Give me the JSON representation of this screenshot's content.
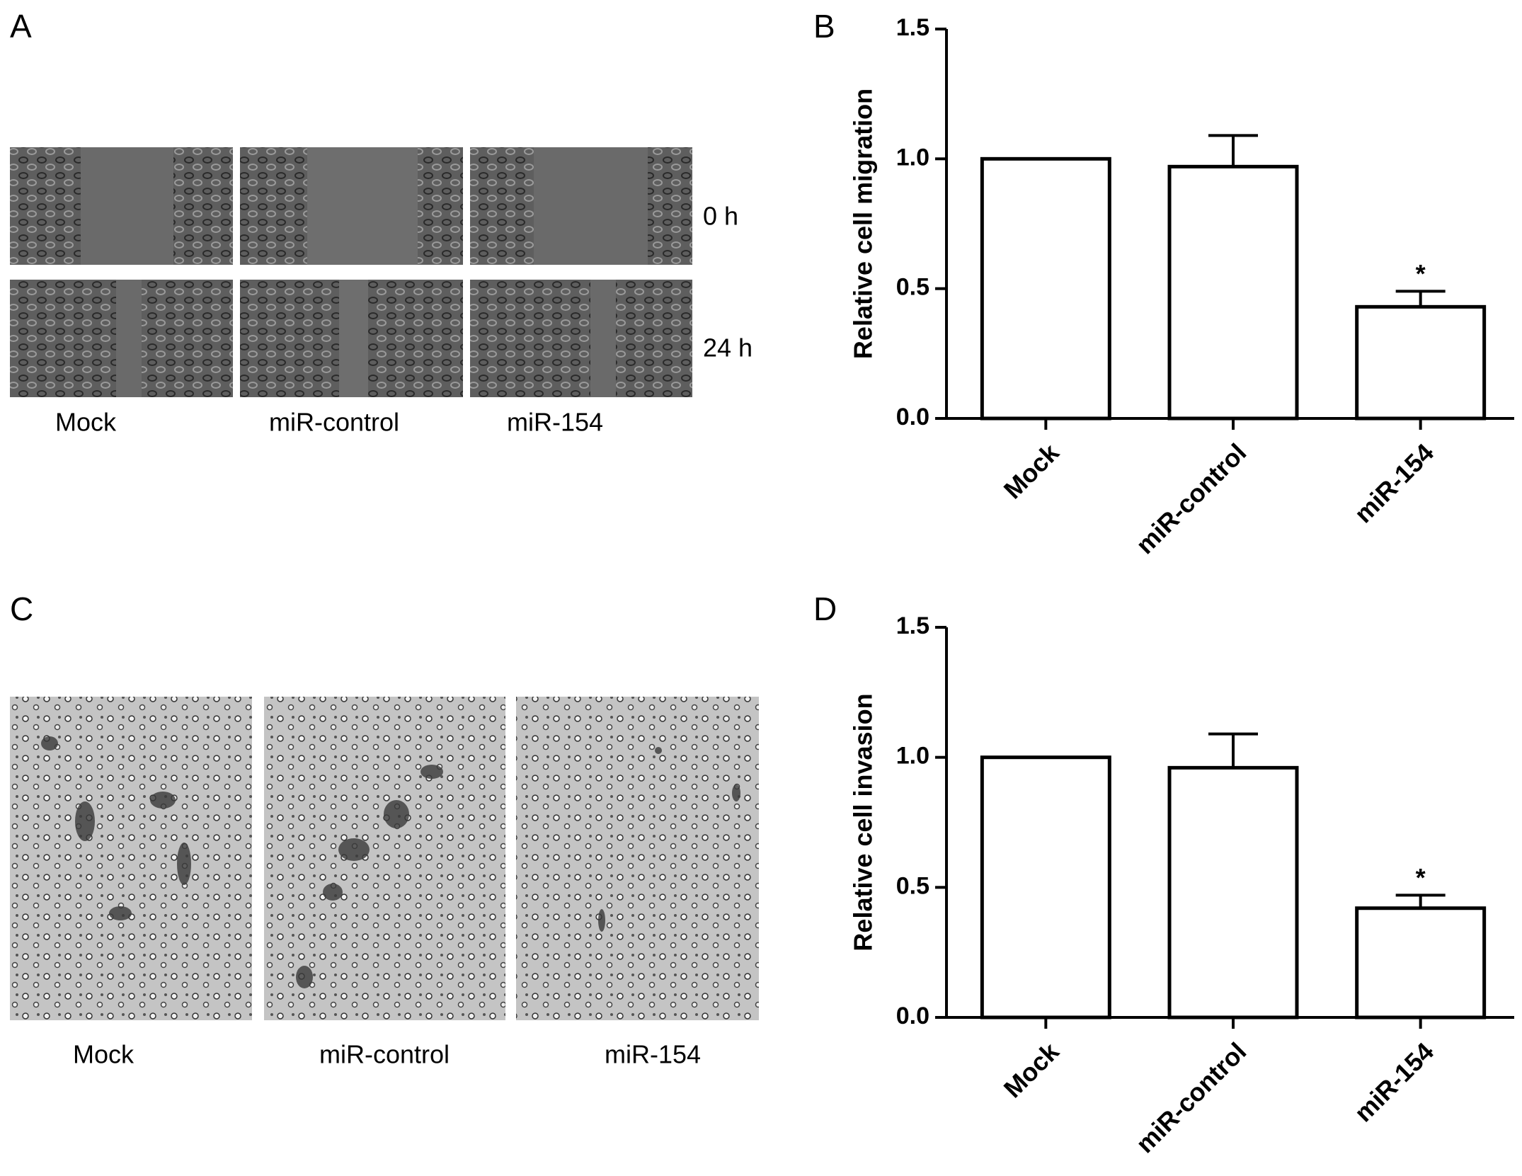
{
  "panels": [
    {
      "label": "A",
      "row_labels": [
        "0 h",
        "24 h"
      ],
      "column_labels": [
        "Mock",
        "miR-control",
        "miR-154"
      ]
    },
    {
      "label": "C",
      "column_labels": [
        "Mock",
        "miR-control",
        "miR-154"
      ]
    }
  ],
  "chart_data": [
    {
      "type": "bar",
      "panel_label": "B",
      "y_label": "Relative cell migration",
      "categories": [
        "Mock",
        "miR-control",
        "miR-154"
      ],
      "values": [
        1.0,
        0.97,
        0.43
      ],
      "errors": [
        0,
        0.12,
        0.06
      ],
      "significance": [
        null,
        null,
        "*"
      ],
      "color": "#ffffff",
      "edge_color": "#000000",
      "ylim": [
        0,
        1.5
      ],
      "yticks": [
        {
          "value": 0,
          "label": "0.0"
        },
        0.5,
        {
          "value": 1,
          "label": "1.0"
        },
        1.5
      ]
    },
    {
      "type": "bar",
      "panel_label": "D",
      "y_label": "Relative cell invasion",
      "categories": [
        "Mock",
        "miR-control",
        "miR-154"
      ],
      "values": [
        1.0,
        0.96,
        0.42
      ],
      "errors": [
        0,
        0.13,
        0.05
      ],
      "significance": [
        null,
        null,
        "*"
      ],
      "color": "#ffffff",
      "edge_color": "#000000",
      "ylim": [
        0,
        1.5
      ],
      "yticks": [
        {
          "value": 0,
          "label": "0.0"
        },
        0.5,
        {
          "value": 1,
          "label": "1.0"
        },
        1.5
      ]
    }
  ]
}
